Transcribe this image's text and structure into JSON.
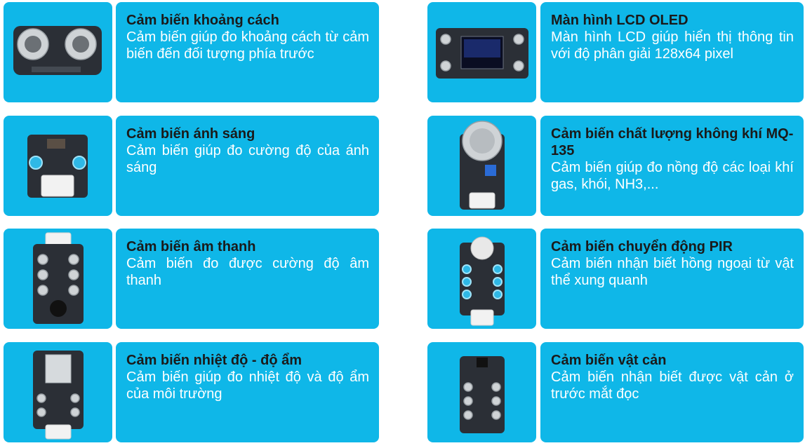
{
  "items": [
    {
      "title": "Cảm biến khoảng cách",
      "description": "Cảm biến giúp đo khoảng cách từ cảm biến đến đối tượng phía trước",
      "icon": "ultrasonic-sensor-image"
    },
    {
      "title": "Cảm biến ánh sáng",
      "description": "Cảm biến giúp đo cường độ của ánh sáng",
      "icon": "light-sensor-image"
    },
    {
      "title": "Cảm biến âm thanh",
      "description": "Cảm biến đo được cường độ âm thanh",
      "icon": "sound-sensor-image"
    },
    {
      "title": "Cảm biến nhiệt độ - độ ẩm",
      "description": "Cảm biến giúp đo nhiệt độ và độ ẩm của môi trường",
      "icon": "temperature-humidity-sensor-image"
    },
    {
      "title": "Màn hình LCD OLED",
      "description": "Màn hình LCD giúp hiển thị thông tin với độ phân giải 128x64 pixel",
      "icon": "oled-display-image"
    },
    {
      "title": "Cảm biến chất lượng không khí MQ-135",
      "description": "Cảm biến giúp đo nồng độ các loại khí gas, khói, NH3,...",
      "icon": "air-quality-sensor-image"
    },
    {
      "title": "Cảm biến chuyển động PIR",
      "description": "Cảm biến nhận biết hồng ngoại từ vật thể xung quanh",
      "icon": "pir-sensor-image"
    },
    {
      "title": "Cảm biến vật cản",
      "description": "Cảm biến nhận biết được vật cản ở trước mắt đọc",
      "icon": "obstacle-sensor-image"
    }
  ],
  "colors": {
    "card": "#0fb7e8",
    "title": "#1a1a1a",
    "description": "#ffffff"
  }
}
